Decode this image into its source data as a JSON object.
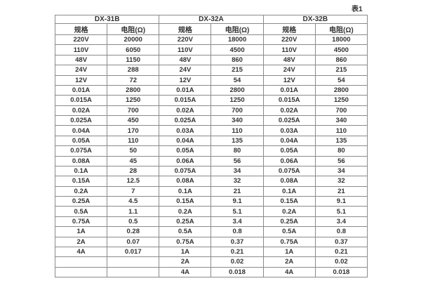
{
  "caption": "表1",
  "table": {
    "groups": [
      "DX-31B",
      "DX-32A",
      "DX-32B"
    ],
    "spec_header": "规格",
    "resistance_header": "电阻(Ω)",
    "rows": [
      [
        "220V",
        "20000",
        "220V",
        "18000",
        "220V",
        "18000"
      ],
      [
        "110V",
        "6050",
        "110V",
        "4500",
        "110V",
        "4500"
      ],
      [
        "48V",
        "1150",
        "48V",
        "860",
        "48V",
        "860"
      ],
      [
        "24V",
        "288",
        "24V",
        "215",
        "24V",
        "215"
      ],
      [
        "12V",
        "72",
        "12V",
        "54",
        "12V",
        "54"
      ],
      [
        "0.01A",
        "2800",
        "0.01A",
        "2800",
        "0.01A",
        "2800"
      ],
      [
        "0.015A",
        "1250",
        "0.015A",
        "1250",
        "0.015A",
        "1250"
      ],
      [
        "0.02A",
        "700",
        "0.02A",
        "700",
        "0.02A",
        "700"
      ],
      [
        "0.025A",
        "450",
        "0.025A",
        "340",
        "0.025A",
        "340"
      ],
      [
        "0.04A",
        "170",
        "0.03A",
        "110",
        "0.03A",
        "110"
      ],
      [
        "0.05A",
        "110",
        "0.04A",
        "135",
        "0.04A",
        "135"
      ],
      [
        "0.075A",
        "50",
        "0.05A",
        "80",
        "0.05A",
        "80"
      ],
      [
        "0.08A",
        "45",
        "0.06A",
        "56",
        "0.06A",
        "56"
      ],
      [
        "0.1A",
        "28",
        "0.075A",
        "34",
        "0.075A",
        "34"
      ],
      [
        "0.15A",
        "12.5",
        "0.08A",
        "32",
        "0.08A",
        "32"
      ],
      [
        "0.2A",
        "7",
        "0.1A",
        "21",
        "0.1A",
        "21"
      ],
      [
        "0.25A",
        "4.5",
        "0.15A",
        "9.1",
        "0.15A",
        "9.1"
      ],
      [
        "0.5A",
        "1.1",
        "0.2A",
        "5.1",
        "0.2A",
        "5.1"
      ],
      [
        "0.75A",
        "0.5",
        "0.25A",
        "3.4",
        "0.25A",
        "3.4"
      ],
      [
        "1A",
        "0.28",
        "0.5A",
        "0.8",
        "0.5A",
        "0.8"
      ],
      [
        "2A",
        "0.07",
        "0.75A",
        "0.37",
        "0.75A",
        "0.37"
      ],
      [
        "4A",
        "0.017",
        "1A",
        "0.21",
        "1A",
        "0.21"
      ],
      [
        "",
        "",
        "2A",
        "0.02",
        "2A",
        "0.02"
      ],
      [
        "",
        "",
        "4A",
        "0.018",
        "4A",
        "0.018"
      ]
    ]
  }
}
